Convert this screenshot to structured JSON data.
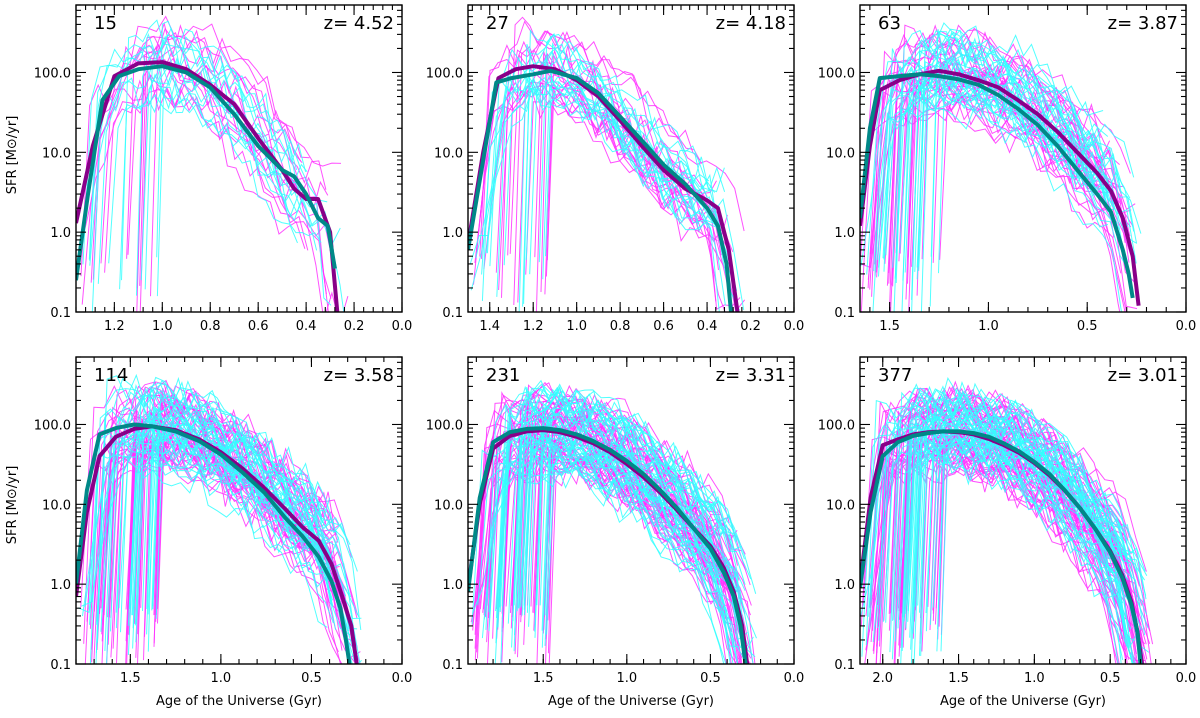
{
  "figure": {
    "ylabel": "SFR [M⊙/yr]",
    "xlabel": "Age of the Universe (Gyr)"
  },
  "colors": {
    "individual_a": "#ff33ff",
    "individual_b": "#33ffff",
    "median_a": "#880088",
    "median_b": "#008888"
  },
  "chart_data": [
    {
      "type": "line",
      "count_label": "15",
      "redshift_label": "z=  4.52",
      "x_reverse": true,
      "xlim": [
        1.36,
        0.0
      ],
      "ylim": [
        0.1,
        700
      ],
      "yscale": "log",
      "xticks": [
        1.2,
        1.0,
        0.8,
        0.6,
        0.4,
        0.2,
        0.0
      ],
      "xtick_labels": [
        "1.2",
        "1.0",
        "0.8",
        "0.6",
        "0.4",
        "0.2",
        "0.0"
      ],
      "yticks": [
        0.1,
        1,
        10,
        100
      ],
      "ytick_labels": [
        "0.1",
        "1.0",
        "10.0",
        "100.0"
      ],
      "n_individual": [
        14,
        14
      ],
      "series": [
        {
          "name": "median-purple",
          "color": "#880088",
          "x": [
            1.36,
            1.29,
            1.2,
            1.1,
            1.0,
            0.9,
            0.8,
            0.7,
            0.6,
            0.5,
            0.45,
            0.4,
            0.35,
            0.3,
            0.27
          ],
          "y": [
            1.3,
            12,
            90,
            130,
            135,
            110,
            70,
            40,
            15,
            6,
            3.5,
            2.6,
            2.6,
            1.0,
            0.1
          ]
        },
        {
          "name": "median-teal",
          "color": "#008888",
          "x": [
            1.36,
            1.31,
            1.25,
            1.18,
            1.1,
            1.0,
            0.9,
            0.8,
            0.7,
            0.6,
            0.5,
            0.45,
            0.4,
            0.35,
            0.31,
            0.28
          ],
          "y": [
            0.25,
            3,
            45,
            90,
            110,
            120,
            100,
            65,
            30,
            12,
            6,
            5,
            3,
            1.5,
            1.2,
            0.35
          ]
        }
      ]
    },
    {
      "type": "line",
      "count_label": "27",
      "redshift_label": "z=  4.18",
      "x_reverse": true,
      "xlim": [
        1.5,
        0.0
      ],
      "ylim": [
        0.1,
        700
      ],
      "yscale": "log",
      "xticks": [
        1.4,
        1.2,
        1.0,
        0.8,
        0.6,
        0.4,
        0.2,
        0.0
      ],
      "xtick_labels": [
        "1.4",
        "1.2",
        "1.0",
        "0.8",
        "0.6",
        "0.4",
        "0.2",
        "0.0"
      ],
      "yticks": [
        0.1,
        1,
        10,
        100
      ],
      "ytick_labels": [
        "0.1",
        "1.0",
        "10.0",
        "100.0"
      ],
      "n_individual": [
        20,
        18
      ],
      "series": [
        {
          "name": "median-purple",
          "color": "#880088",
          "x": [
            1.5,
            1.43,
            1.36,
            1.28,
            1.2,
            1.1,
            1.0,
            0.9,
            0.8,
            0.7,
            0.6,
            0.5,
            0.4,
            0.35,
            0.3,
            0.26
          ],
          "y": [
            0.7,
            10,
            85,
            110,
            120,
            110,
            80,
            50,
            25,
            12,
            6,
            3.5,
            2.5,
            2.0,
            0.6,
            0.1
          ]
        },
        {
          "name": "median-teal",
          "color": "#008888",
          "x": [
            1.5,
            1.43,
            1.37,
            1.3,
            1.2,
            1.12,
            1.0,
            0.9,
            0.8,
            0.7,
            0.6,
            0.5,
            0.4,
            0.35,
            0.31,
            0.29
          ],
          "y": [
            0.6,
            8,
            75,
            85,
            95,
            105,
            85,
            55,
            28,
            14,
            7,
            4,
            2.0,
            1.2,
            0.4,
            0.1
          ]
        }
      ]
    },
    {
      "type": "line",
      "count_label": "63",
      "redshift_label": "z=  3.87",
      "x_reverse": true,
      "xlim": [
        1.65,
        0.0
      ],
      "ylim": [
        0.1,
        700
      ],
      "yscale": "log",
      "xticks": [
        1.5,
        1.0,
        0.5,
        0.0
      ],
      "xtick_labels": [
        "1.5",
        "1.0",
        "0.5",
        "0.0"
      ],
      "yticks": [
        0.1,
        1,
        10,
        100
      ],
      "ytick_labels": [
        "0.1",
        "1.0",
        "10.0",
        "100.0"
      ],
      "n_individual": [
        32,
        30
      ],
      "series": [
        {
          "name": "median-purple",
          "color": "#880088",
          "x": [
            1.65,
            1.6,
            1.55,
            1.45,
            1.35,
            1.25,
            1.15,
            1.05,
            0.95,
            0.85,
            0.75,
            0.65,
            0.55,
            0.45,
            0.38,
            0.32,
            0.27,
            0.24
          ],
          "y": [
            1.2,
            12,
            60,
            80,
            95,
            105,
            95,
            80,
            65,
            45,
            30,
            18,
            10,
            5.5,
            3.3,
            1.5,
            0.5,
            0.12
          ]
        },
        {
          "name": "median-teal",
          "color": "#008888",
          "x": [
            1.65,
            1.6,
            1.55,
            1.45,
            1.35,
            1.25,
            1.15,
            1.05,
            0.95,
            0.85,
            0.75,
            0.65,
            0.55,
            0.45,
            0.38,
            0.32,
            0.29,
            0.27
          ],
          "y": [
            1.5,
            20,
            85,
            90,
            95,
            90,
            82,
            70,
            52,
            35,
            22,
            12,
            6,
            3,
            1.8,
            0.6,
            0.3,
            0.15
          ]
        }
      ]
    },
    {
      "type": "line",
      "count_label": "114",
      "redshift_label": "z=  3.58",
      "x_reverse": true,
      "xlim": [
        1.8,
        0.0
      ],
      "ylim": [
        0.1,
        700
      ],
      "yscale": "log",
      "xticks": [
        1.5,
        1.0,
        0.5,
        0.0
      ],
      "xtick_labels": [
        "1.5",
        "1.0",
        "0.5",
        "0.0"
      ],
      "yticks": [
        0.1,
        1,
        10,
        100
      ],
      "ytick_labels": [
        "0.1",
        "1.0",
        "10.0",
        "100.0"
      ],
      "n_individual": [
        50,
        40
      ],
      "series": [
        {
          "name": "median-purple",
          "color": "#880088",
          "x": [
            1.8,
            1.74,
            1.67,
            1.58,
            1.48,
            1.38,
            1.25,
            1.12,
            1.0,
            0.88,
            0.76,
            0.65,
            0.55,
            0.46,
            0.39,
            0.33,
            0.28,
            0.25
          ],
          "y": [
            0.7,
            8,
            40,
            70,
            88,
            95,
            85,
            65,
            45,
            28,
            16,
            9,
            5.2,
            3.5,
            1.8,
            0.7,
            0.3,
            0.1
          ]
        },
        {
          "name": "median-teal",
          "color": "#008888",
          "x": [
            1.8,
            1.74,
            1.67,
            1.58,
            1.48,
            1.38,
            1.25,
            1.12,
            1.0,
            0.88,
            0.76,
            0.65,
            0.55,
            0.46,
            0.39,
            0.34,
            0.31,
            0.29
          ],
          "y": [
            1.0,
            15,
            75,
            90,
            100,
            95,
            82,
            62,
            42,
            25,
            14,
            7,
            4,
            2.2,
            1.1,
            0.5,
            0.2,
            0.1
          ]
        }
      ]
    },
    {
      "type": "line",
      "count_label": "231",
      "redshift_label": "z=  3.31",
      "x_reverse": true,
      "xlim": [
        1.95,
        0.0
      ],
      "ylim": [
        0.1,
        700
      ],
      "yscale": "log",
      "xticks": [
        1.5,
        1.0,
        0.5,
        0.0
      ],
      "xtick_labels": [
        "1.5",
        "1.0",
        "0.5",
        "0.0"
      ],
      "yticks": [
        0.1,
        1,
        10,
        100
      ],
      "ytick_labels": [
        "0.1",
        "1.0",
        "10.0",
        "100.0"
      ],
      "n_individual": [
        55,
        45
      ],
      "series": [
        {
          "name": "median-purple",
          "color": "#880088",
          "x": [
            1.95,
            1.88,
            1.8,
            1.7,
            1.6,
            1.5,
            1.4,
            1.3,
            1.2,
            1.1,
            1.0,
            0.9,
            0.8,
            0.7,
            0.6,
            0.5,
            0.42,
            0.36,
            0.31,
            0.28
          ],
          "y": [
            0.9,
            10,
            50,
            72,
            82,
            85,
            80,
            70,
            58,
            45,
            32,
            22,
            14,
            8.5,
            5,
            3,
            1.6,
            0.8,
            0.3,
            0.1
          ]
        },
        {
          "name": "median-teal",
          "color": "#008888",
          "x": [
            1.95,
            1.88,
            1.8,
            1.7,
            1.6,
            1.5,
            1.4,
            1.3,
            1.2,
            1.1,
            1.0,
            0.9,
            0.8,
            0.7,
            0.6,
            0.5,
            0.42,
            0.36,
            0.32,
            0.29
          ],
          "y": [
            0.8,
            12,
            60,
            80,
            88,
            90,
            85,
            75,
            62,
            48,
            35,
            24,
            15,
            9,
            5,
            2.8,
            1.4,
            0.7,
            0.3,
            0.1
          ]
        }
      ]
    },
    {
      "type": "line",
      "count_label": "377",
      "redshift_label": "z=  3.01",
      "x_reverse": true,
      "xlim": [
        2.15,
        0.0
      ],
      "ylim": [
        0.1,
        700
      ],
      "yscale": "log",
      "xticks": [
        2.0,
        1.5,
        1.0,
        0.5,
        0.0
      ],
      "xtick_labels": [
        "2.0",
        "1.5",
        "1.0",
        "0.5",
        "0.0"
      ],
      "yticks": [
        0.1,
        1,
        10,
        100
      ],
      "ytick_labels": [
        "0.1",
        "1.0",
        "10.0",
        "100.0"
      ],
      "n_individual": [
        60,
        45
      ],
      "series": [
        {
          "name": "median-purple",
          "color": "#880088",
          "x": [
            2.15,
            2.08,
            2.0,
            1.9,
            1.8,
            1.7,
            1.6,
            1.5,
            1.4,
            1.3,
            1.2,
            1.1,
            1.0,
            0.9,
            0.8,
            0.7,
            0.6,
            0.5,
            0.42,
            0.36,
            0.32,
            0.29
          ],
          "y": [
            1.0,
            12,
            55,
            65,
            75,
            80,
            82,
            80,
            75,
            66,
            55,
            44,
            33,
            23,
            15,
            9,
            5,
            2.6,
            1.3,
            0.6,
            0.25,
            0.1
          ]
        },
        {
          "name": "median-teal",
          "color": "#008888",
          "x": [
            2.15,
            2.08,
            2.0,
            1.9,
            1.8,
            1.7,
            1.6,
            1.5,
            1.4,
            1.3,
            1.2,
            1.1,
            1.0,
            0.9,
            0.8,
            0.7,
            0.6,
            0.5,
            0.42,
            0.36,
            0.32,
            0.3
          ],
          "y": [
            0.9,
            8,
            40,
            60,
            72,
            78,
            82,
            82,
            78,
            70,
            58,
            46,
            34,
            24,
            15,
            9,
            5,
            2.5,
            1.2,
            0.55,
            0.25,
            0.1
          ]
        }
      ]
    }
  ]
}
